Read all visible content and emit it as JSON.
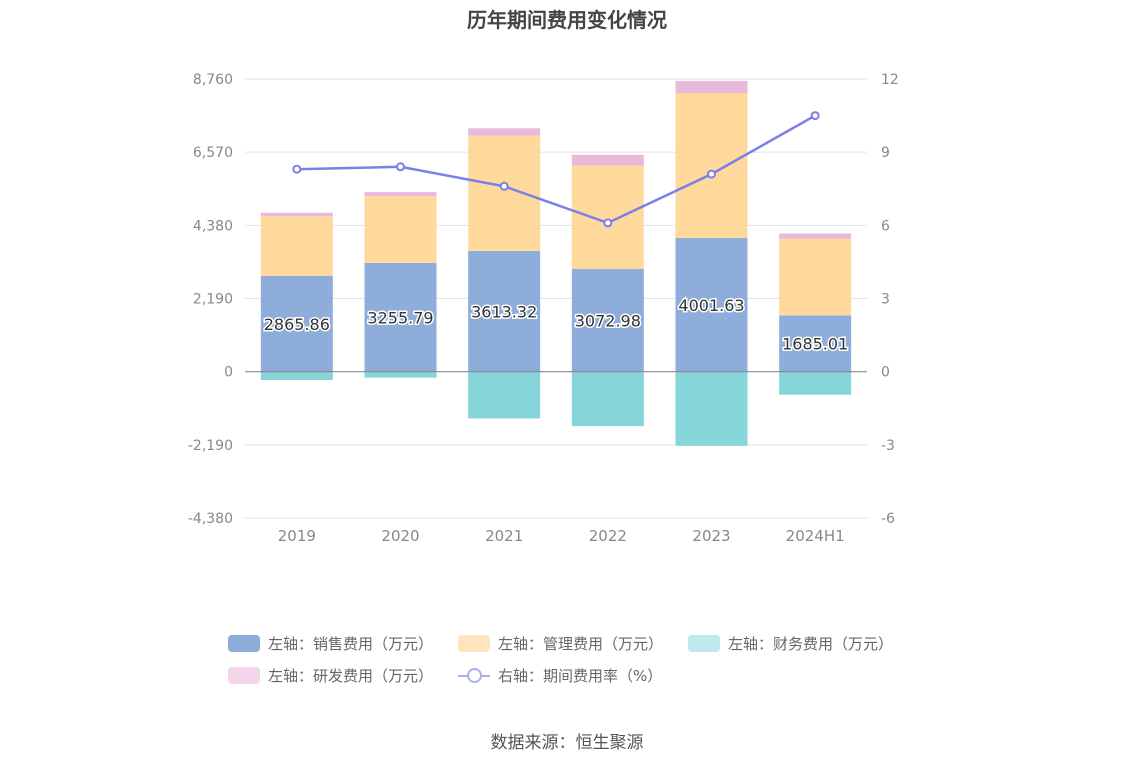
{
  "chart_data": {
    "type": "bar",
    "stacked": true,
    "title": "历年期间费用变化情况",
    "categories": [
      "2019",
      "2020",
      "2021",
      "2022",
      "2023",
      "2024H1"
    ],
    "left_axis": {
      "min": -4380,
      "max": 8760,
      "ticks": [
        8760,
        6570,
        4380,
        2190,
        0,
        -2190,
        -4380
      ],
      "tick_labels": [
        "8,760",
        "6,570",
        "4,380",
        "2,190",
        "0",
        "-2,190",
        "-4,380"
      ]
    },
    "right_axis": {
      "min": -6,
      "max": 12,
      "ticks": [
        12,
        9,
        6,
        3,
        0,
        -3,
        -6
      ],
      "tick_labels": [
        "12",
        "9",
        "6",
        "3",
        "0",
        "-3",
        "-6"
      ]
    },
    "series": [
      {
        "name": "左轴：销售费用（万元）",
        "axis": "left",
        "type": "bar",
        "color": "#8eaddb",
        "values": [
          2865.86,
          3255.79,
          3613.32,
          3072.98,
          4001.63,
          1685.01
        ],
        "data_labels": [
          "2865.86",
          "3255.79",
          "3613.32",
          "3072.98",
          "4001.63",
          "1685.01"
        ]
      },
      {
        "name": "左轴：管理费用（万元）",
        "axis": "left",
        "type": "bar",
        "color": "#ffd99c",
        "values": [
          1790,
          2000,
          3450,
          3100,
          4330,
          2300
        ]
      },
      {
        "name": "左轴：财务费用（万元）",
        "axis": "left",
        "type": "bar",
        "color": "#85d5d9",
        "values": [
          -250,
          -180,
          -1400,
          -1630,
          -2220,
          -690
        ]
      },
      {
        "name": "左轴：研发费用（万元）",
        "axis": "left",
        "type": "bar",
        "color": "#e9b9dc",
        "values": [
          100,
          120,
          220,
          320,
          370,
          150
        ]
      },
      {
        "name": "右轴：期间费用率（%）",
        "axis": "right",
        "type": "line",
        "color": "#7b7fe8",
        "values": [
          8.3,
          8.4,
          7.6,
          6.1,
          8.1,
          10.5
        ]
      }
    ],
    "legend_position": "bottom",
    "grid": true
  },
  "legend_colors": [
    "#8eaddb",
    "#fde5bd",
    "#bfe9ec",
    "#f3d6ea",
    "#aab0ef"
  ],
  "source": "数据来源：恒生聚源"
}
